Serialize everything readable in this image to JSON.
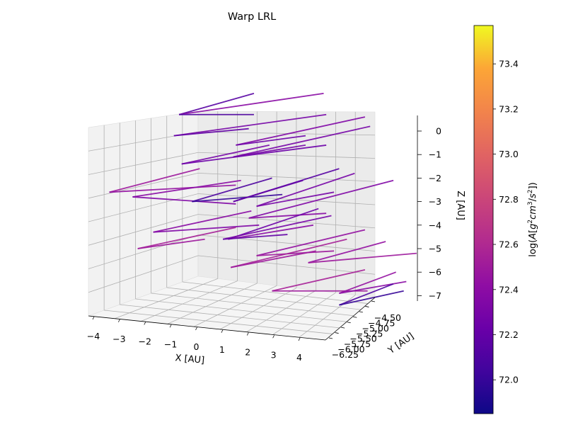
{
  "chart_data": {
    "type": "quiver3d",
    "title": "Warp LRL",
    "xlabel": "X [AU]",
    "ylabel": "Y [AU]",
    "zlabel": "Z [AU]",
    "colorbar_label_parts": [
      "log(",
      "A",
      "[",
      "g",
      "2",
      "cm",
      "3",
      "/",
      "s",
      "2",
      "])"
    ],
    "x_ticks": [
      "−4",
      "−3",
      "−2",
      "−1",
      "0",
      "1",
      "2",
      "3",
      "4"
    ],
    "y_ticks": [
      "−6.25",
      "−6.00",
      "−5.75",
      "−5.50",
      "−5.25",
      "−5.00",
      "−4.75",
      "−4.50"
    ],
    "z_ticks": [
      "0",
      "−1",
      "−2",
      "−3",
      "−4",
      "−5",
      "−6",
      "−7"
    ],
    "colorbar_ticks": [
      "72.0",
      "72.2",
      "72.4",
      "72.6",
      "72.8",
      "73.0",
      "73.2",
      "73.4"
    ],
    "colorbar_range": [
      71.85,
      73.57
    ],
    "colormap": "plasma",
    "grid": true,
    "vectors_note": "approximate in-image vector set; values are colorbar values (log A)",
    "vectors": [
      {
        "x0": -0.6,
        "z0": 0.7,
        "dx": 2.9,
        "dz": 0.9,
        "value": 72.15
      },
      {
        "x0": -0.6,
        "z0": 0.7,
        "dx": 5.6,
        "dz": 0.9,
        "value": 72.4
      },
      {
        "x0": -0.6,
        "z0": 0.7,
        "dx": 2.9,
        "dz": 0.0,
        "value": 72.1
      },
      {
        "x0": -0.8,
        "z0": -0.2,
        "dx": 5.9,
        "dz": 0.9,
        "value": 72.3
      },
      {
        "x0": -0.8,
        "z0": -0.2,
        "dx": 2.9,
        "dz": 0.3,
        "value": 72.2
      },
      {
        "x0": 1.6,
        "z0": -0.6,
        "dx": 5.0,
        "dz": 1.2,
        "value": 72.35
      },
      {
        "x0": 1.6,
        "z0": -0.6,
        "dx": 2.7,
        "dz": 0.4,
        "value": 72.25
      },
      {
        "x0": 1.5,
        "z0": -1.1,
        "dx": 5.3,
        "dz": 1.3,
        "value": 72.3
      },
      {
        "x0": 1.5,
        "z0": -1.1,
        "dx": 2.8,
        "dz": 0.5,
        "value": 72.3
      },
      {
        "x0": -3.3,
        "z0": -2.6,
        "dx": 3.5,
        "dz": 1.0,
        "value": 72.5
      },
      {
        "x0": -3.3,
        "z0": -2.6,
        "dx": 4.9,
        "dz": 0.3,
        "value": 72.45
      },
      {
        "x0": -2.4,
        "z0": -2.8,
        "dx": 4.2,
        "dz": 0.7,
        "value": 72.4
      },
      {
        "x0": -2.4,
        "z0": -2.8,
        "dx": 4.0,
        "dz": -0.3,
        "value": 72.35
      },
      {
        "x0": -0.1,
        "z0": -3.0,
        "dx": 3.1,
        "dz": 1.0,
        "value": 72.1
      },
      {
        "x0": -0.1,
        "z0": -3.0,
        "dx": 3.5,
        "dz": 0.3,
        "value": 72.0
      },
      {
        "x0": 1.5,
        "z0": -3.0,
        "dx": 4.1,
        "dz": 1.4,
        "value": 72.15
      },
      {
        "x0": 1.5,
        "z0": -3.0,
        "dx": 2.7,
        "dz": 0.9,
        "value": 72.2
      },
      {
        "x0": 2.4,
        "z0": -3.2,
        "dx": 3.8,
        "dz": 1.4,
        "value": 72.3
      },
      {
        "x0": 2.4,
        "z0": -3.2,
        "dx": 3.0,
        "dz": 0.6,
        "value": 72.3
      },
      {
        "x0": 2.1,
        "z0": -3.7,
        "dx": 5.6,
        "dz": 1.6,
        "value": 72.35
      },
      {
        "x0": 2.1,
        "z0": -3.7,
        "dx": 3.0,
        "dz": 0.2,
        "value": 72.4
      },
      {
        "x0": 1.3,
        "z0": -4.6,
        "dx": 3.5,
        "dz": 1.3,
        "value": 72.25
      },
      {
        "x0": 1.3,
        "z0": -4.6,
        "dx": 3.3,
        "dz": 0.6,
        "value": 72.4
      },
      {
        "x0": 1.1,
        "z0": -4.6,
        "dx": 4.2,
        "dz": 1.0,
        "value": 72.3
      },
      {
        "x0": 1.1,
        "z0": -4.6,
        "dx": 2.5,
        "dz": 0.2,
        "value": 72.2
      },
      {
        "x0": 2.4,
        "z0": -5.3,
        "dx": 4.2,
        "dz": 1.1,
        "value": 72.45
      },
      {
        "x0": 2.4,
        "z0": -5.3,
        "dx": 3.0,
        "dz": 0.2,
        "value": 72.5
      },
      {
        "x0": 1.4,
        "z0": -5.8,
        "dx": 4.5,
        "dz": 1.2,
        "value": 72.55
      },
      {
        "x0": 1.4,
        "z0": -5.8,
        "dx": 3.3,
        "dz": 0.7,
        "value": 72.5
      },
      {
        "x0": 4.4,
        "z0": -5.6,
        "dx": 3.0,
        "dz": 0.9,
        "value": 72.45
      },
      {
        "x0": 4.4,
        "z0": -5.6,
        "dx": 4.2,
        "dz": 0.4,
        "value": 72.5
      },
      {
        "x0": 3.0,
        "z0": -6.8,
        "dx": 3.6,
        "dz": 0.9,
        "value": 72.55
      },
      {
        "x0": 3.0,
        "z0": -6.8,
        "dx": 3.7,
        "dz": 0.0,
        "value": 72.5
      },
      {
        "x0": 5.6,
        "z0": -6.9,
        "dx": 2.2,
        "dz": 0.9,
        "value": 72.45
      },
      {
        "x0": 5.6,
        "z0": -6.9,
        "dx": 2.6,
        "dz": 0.5,
        "value": 72.4
      },
      {
        "x0": 5.6,
        "z0": -7.4,
        "dx": 2.1,
        "dz": 0.9,
        "value": 72.1
      },
      {
        "x0": 5.6,
        "z0": -7.4,
        "dx": 2.5,
        "dz": 0.6,
        "value": 72.0
      },
      {
        "x0": -1.6,
        "z0": -4.3,
        "dx": 3.8,
        "dz": 0.9,
        "value": 72.4
      },
      {
        "x0": -1.6,
        "z0": -4.3,
        "dx": 4.1,
        "dz": 0.3,
        "value": 72.35
      },
      {
        "x0": -2.2,
        "z0": -5.0,
        "dx": 3.8,
        "dz": 0.9,
        "value": 72.55
      },
      {
        "x0": -2.2,
        "z0": -5.0,
        "dx": 2.6,
        "dz": 0.4,
        "value": 72.5
      },
      {
        "x0": -0.5,
        "z0": -1.4,
        "dx": 3.4,
        "dz": 0.8,
        "value": 72.3
      },
      {
        "x0": -0.5,
        "z0": -1.4,
        "dx": 5.6,
        "dz": 0.8,
        "value": 72.25
      }
    ]
  }
}
